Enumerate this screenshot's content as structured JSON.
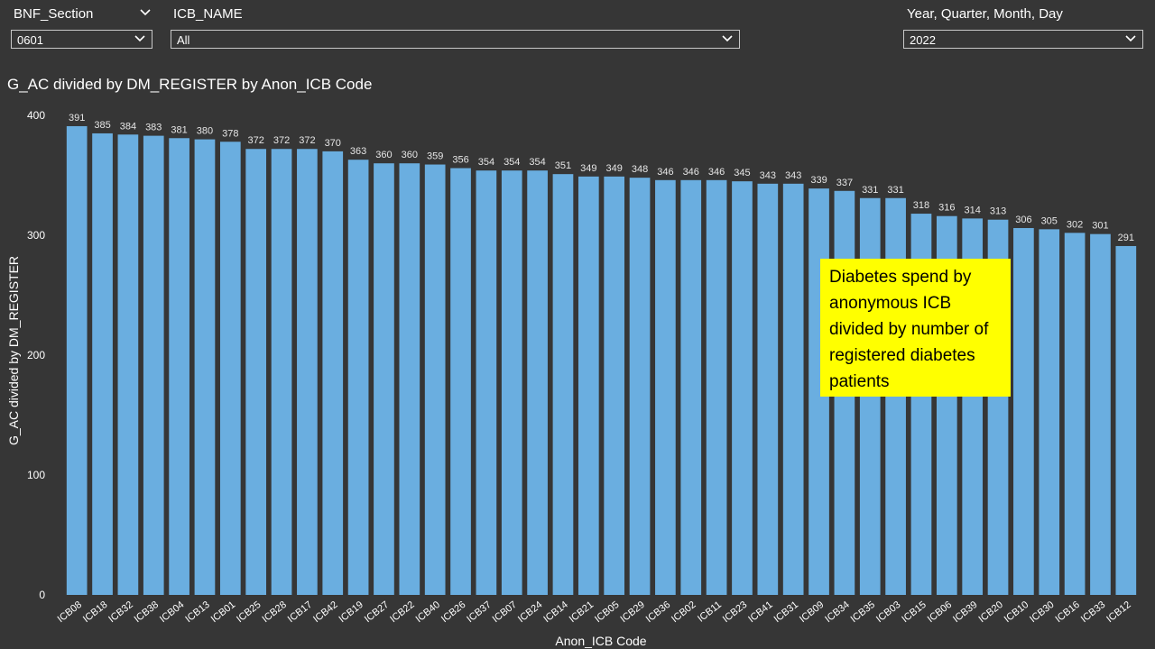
{
  "filters": {
    "bnf_section": {
      "title": "BNF_Section",
      "value": "0601"
    },
    "icb_name": {
      "title": "ICB_NAME",
      "value": "All"
    },
    "date": {
      "title": "Year, Quarter, Month, Day",
      "value": "2022"
    }
  },
  "annotation": "Diabetes spend by anonymous ICB divided by number of registered diabetes patients",
  "chart_data": {
    "type": "bar",
    "title": "G_AC divided by DM_REGISTER by Anon_ICB Code",
    "xlabel": "Anon_ICB Code",
    "ylabel": "G_AC divided by DM_REGISTER",
    "ylim": [
      0,
      400
    ],
    "yticks": [
      0,
      100,
      200,
      300,
      400
    ],
    "bar_color": "#6aaee0",
    "categories": [
      "ICB08",
      "ICB18",
      "ICB32",
      "ICB38",
      "ICB04",
      "ICB13",
      "ICB01",
      "ICB25",
      "ICB28",
      "ICB17",
      "ICB42",
      "ICB19",
      "ICB27",
      "ICB22",
      "ICB40",
      "ICB26",
      "ICB37",
      "ICB07",
      "ICB24",
      "ICB14",
      "ICB21",
      "ICB05",
      "ICB29",
      "ICB36",
      "ICB02",
      "ICB11",
      "ICB23",
      "ICB41",
      "ICB31",
      "ICB09",
      "ICB34",
      "ICB35",
      "ICB03",
      "ICB15",
      "ICB06",
      "ICB39",
      "ICB20",
      "ICB10",
      "ICB30",
      "ICB16",
      "ICB33",
      "ICB12"
    ],
    "values": [
      391,
      385,
      384,
      383,
      381,
      380,
      378,
      372,
      372,
      372,
      370,
      363,
      360,
      360,
      359,
      356,
      354,
      354,
      354,
      351,
      349,
      349,
      348,
      346,
      346,
      346,
      345,
      343,
      343,
      339,
      337,
      331,
      331,
      318,
      316,
      314,
      313,
      306,
      305,
      302,
      301,
      291
    ]
  }
}
